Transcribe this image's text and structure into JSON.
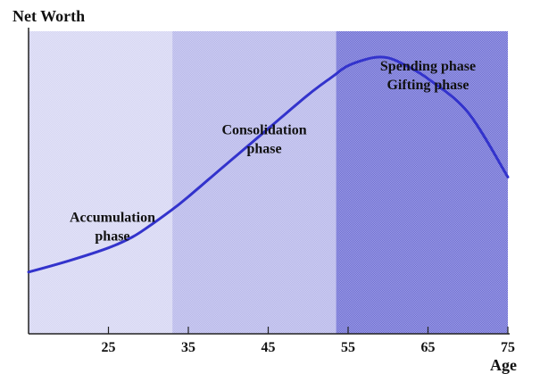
{
  "chart_data": {
    "type": "line",
    "ylabel": "Net Worth",
    "xlabel": "Age",
    "xlim": [
      15,
      75
    ],
    "ylim": [
      0,
      100
    ],
    "xticks": [
      25,
      35,
      45,
      55,
      65,
      75
    ],
    "grid": false,
    "colors": {
      "line": "#3333cc",
      "axis": "#222222",
      "band_accumulation": "#d5d5f3",
      "band_consolidation": "#b6b6ea",
      "band_spending": "#6c6cd4"
    },
    "bands": [
      {
        "name": "accumulation",
        "from": 15,
        "to": 33
      },
      {
        "name": "consolidation",
        "from": 33,
        "to": 53.5
      },
      {
        "name": "spending",
        "from": 53.5,
        "to": 75
      }
    ],
    "series": [
      {
        "x": [
          15,
          20,
          25,
          28,
          30,
          33,
          35,
          40,
          45,
          50,
          53,
          55,
          58,
          60,
          62,
          65,
          70,
          75
        ],
        "y": [
          20.4,
          24.1,
          28.4,
          32.0,
          35.4,
          41.1,
          45.3,
          56.6,
          67.8,
          79.0,
          84.9,
          88.6,
          91.2,
          91.2,
          89.0,
          84.3,
          73.2,
          51.8
        ]
      }
    ],
    "annotations": [
      {
        "id": "accumulation",
        "lines": [
          "Accumulation",
          "phase"
        ],
        "x": 25.5,
        "y": 37
      },
      {
        "id": "consolidation",
        "lines": [
          "Consolidation",
          "phase"
        ],
        "x": 44.5,
        "y": 66
      },
      {
        "id": "spending",
        "lines": [
          "Spending phase",
          "Gifting phase"
        ],
        "x": 65,
        "y": 87
      }
    ]
  }
}
